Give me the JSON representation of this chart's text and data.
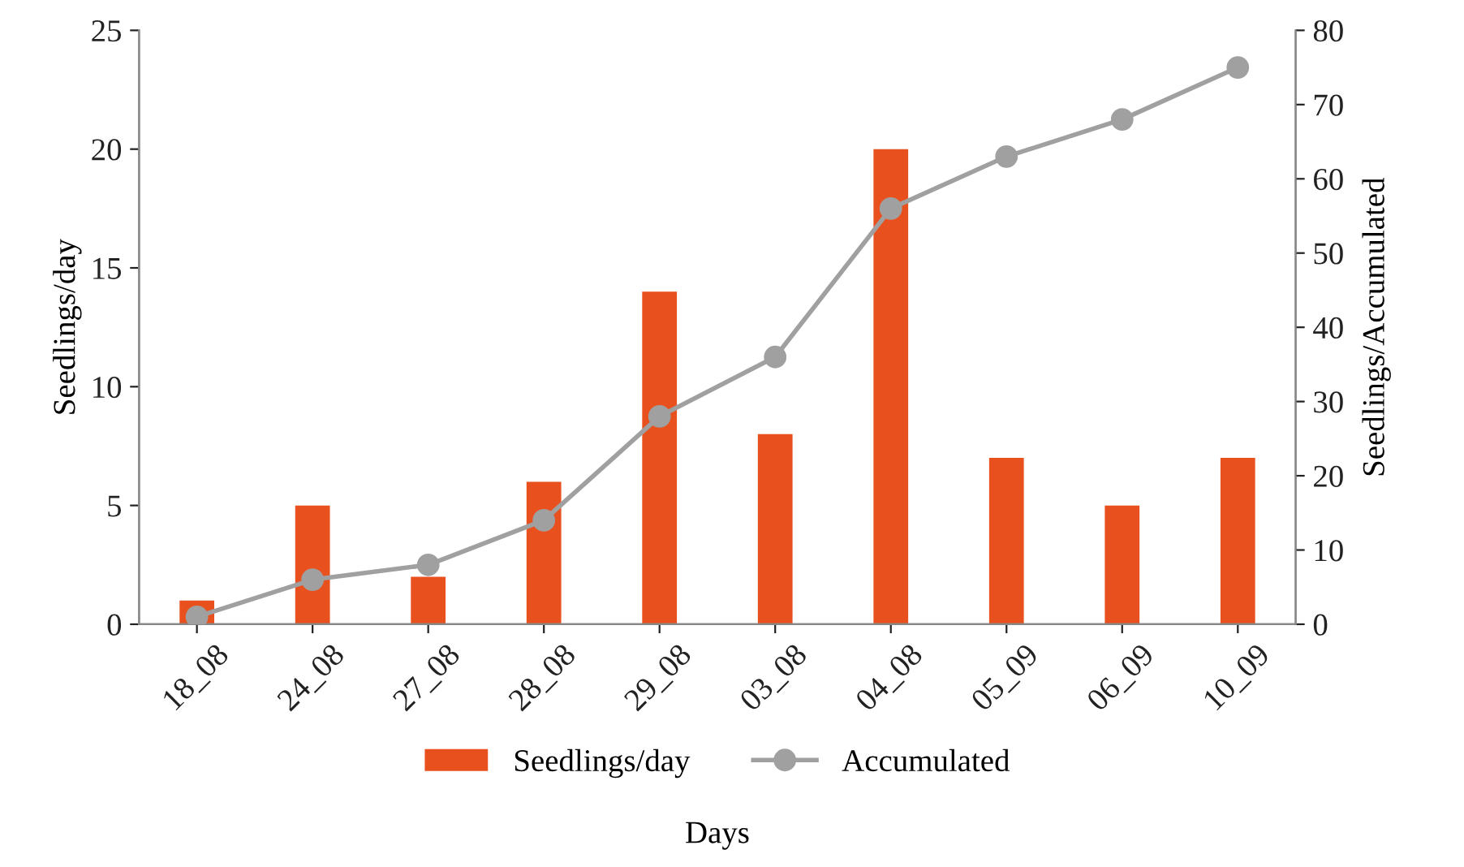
{
  "chart_data": {
    "type": "bar",
    "xlabel": "Days",
    "ylabel": "Seedlings/day",
    "y2label": "Seedlings/Accumulated",
    "categories": [
      "18_08",
      "24_08",
      "27_08",
      "28_08",
      "29_08",
      "03_08",
      "04_08",
      "05_09",
      "06_09",
      "10_09"
    ],
    "series": [
      {
        "name": "Seedlings/day",
        "color": "#e8501e",
        "values": [
          1,
          5,
          2,
          6,
          14,
          8,
          20,
          7,
          5,
          7
        ]
      },
      {
        "name": "Accumulated",
        "type": "line",
        "axis": "y2",
        "color": "#a0a0a0",
        "marker": "circle",
        "values": [
          1,
          6,
          8,
          14,
          28,
          36,
          56,
          63,
          68,
          75
        ]
      }
    ],
    "ylim": [
      0,
      25
    ],
    "yticks": [
      0,
      5,
      10,
      15,
      20,
      25
    ],
    "y2lim": [
      0,
      80
    ],
    "y2ticks": [
      0,
      10,
      20,
      30,
      40,
      50,
      60,
      70,
      80
    ],
    "grid": false,
    "legend": "bottom"
  }
}
